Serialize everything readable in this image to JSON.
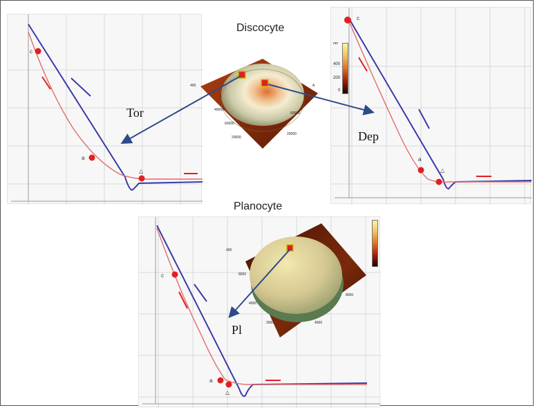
{
  "titles": {
    "discocyte": "Discocyte",
    "planocyte": "Planocyte"
  },
  "arrow_labels": {
    "tor": "Tor",
    "dep": "Dep",
    "pl": "Pl"
  },
  "point_labels": {
    "c": "c",
    "a": "a",
    "triangle": "△"
  },
  "colors": {
    "blue_curve": "#3a3aa8",
    "red_curve": "#e26b6b",
    "marker": "#e02020",
    "arrow": "#2e4a8a",
    "grid": "#d9d9d9"
  },
  "afm_images": {
    "discocyte": {
      "z_axis_unit": "nm",
      "colorbar_ticks": [
        "400",
        "200",
        "0"
      ]
    },
    "planocyte": {
      "colorbar_ticks": []
    }
  }
}
